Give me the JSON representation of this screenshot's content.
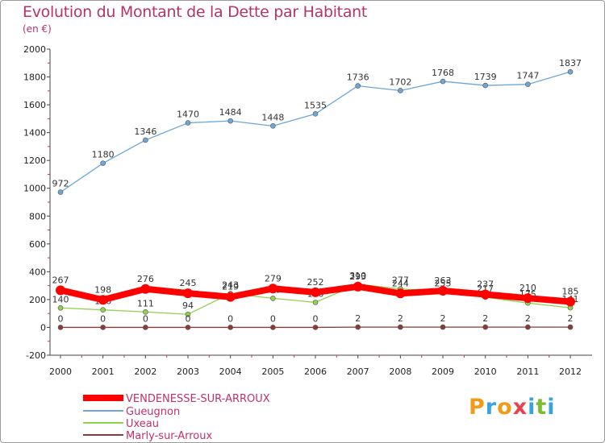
{
  "title": "Evolution du Montant de la Dette par Habitant",
  "unit_label": "(en €)",
  "logo": {
    "text": "Proxiti",
    "letters": [
      "P",
      "r",
      "o",
      "x",
      "i",
      "t",
      "i"
    ],
    "colors": [
      "#f29b1a",
      "#3aa3dd",
      "#f29b1a",
      "#e8424e",
      "#3aa3dd",
      "#7bbd2f",
      "#3aa3dd"
    ]
  },
  "chart_data": {
    "type": "line",
    "x": [
      "2000",
      "2001",
      "2002",
      "2003",
      "2004",
      "2005",
      "2006",
      "2007",
      "2008",
      "2009",
      "2010",
      "2011",
      "2012"
    ],
    "ylim": [
      -200,
      2000
    ],
    "yticks": [
      -200,
      0,
      200,
      400,
      600,
      800,
      1000,
      1200,
      1400,
      1600,
      1800,
      2000
    ],
    "grid": false,
    "legend_position": "bottom-left",
    "series": [
      {
        "name": "VENDENESSE-SUR-ARROUX",
        "color": "#ff0000",
        "values": [
          267,
          198,
          276,
          245,
          219,
          279,
          252,
          293,
          244,
          263,
          237,
          210,
          185
        ]
      },
      {
        "name": "Gueugnon",
        "color": "#6fa6d6",
        "values": [
          972,
          1180,
          1346,
          1470,
          1484,
          1448,
          1535,
          1736,
          1702,
          1768,
          1739,
          1747,
          1837
        ]
      },
      {
        "name": "Uxeau",
        "color": "#92d050",
        "values": [
          140,
          126,
          111,
          94,
          243,
          209,
          180,
          310,
          277,
          255,
          217,
          175,
          141
        ]
      },
      {
        "name": "Marly-sur-Arroux",
        "color": "#8b3a3a",
        "values": [
          0,
          0,
          0,
          0,
          0,
          0,
          0,
          2,
          2,
          2,
          2,
          2,
          2
        ]
      }
    ]
  }
}
